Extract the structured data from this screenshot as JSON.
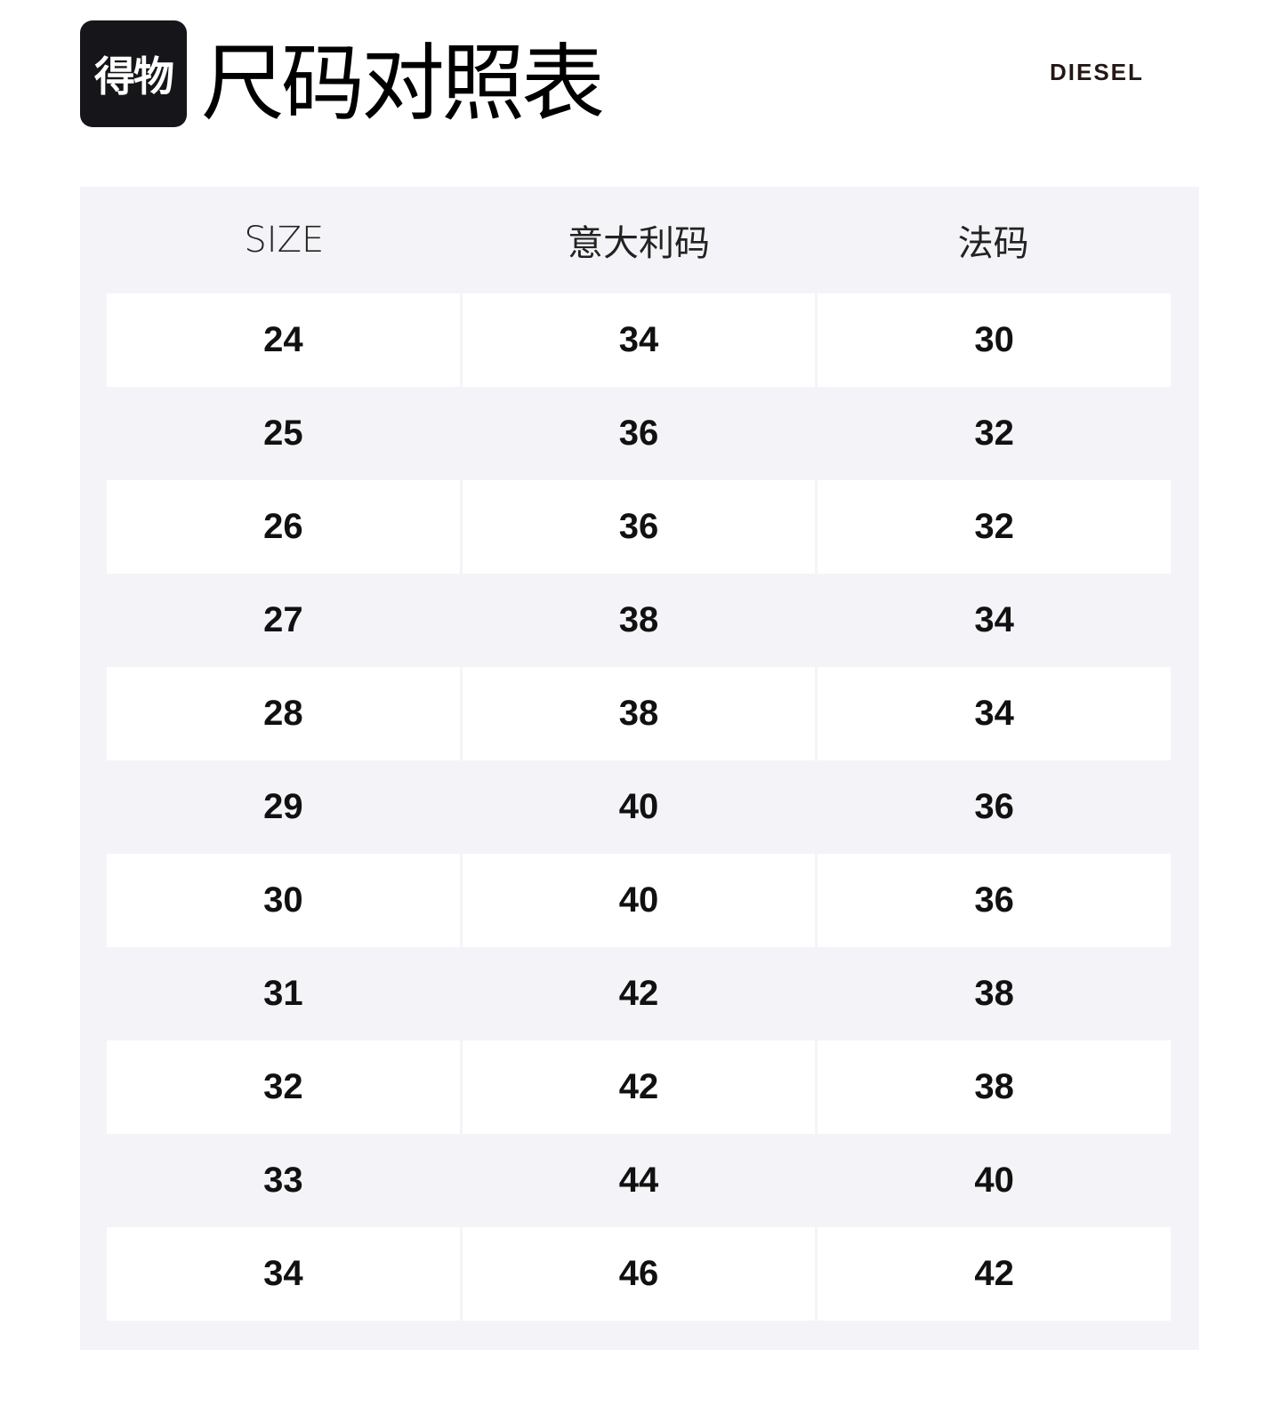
{
  "header": {
    "logo_text": "得物",
    "title": "尺码对照表",
    "brand": "DIESEL"
  },
  "table": {
    "columns": [
      "SIZE",
      "意大利码",
      "法码"
    ],
    "rows": [
      [
        "24",
        "34",
        "30"
      ],
      [
        "25",
        "36",
        "32"
      ],
      [
        "26",
        "36",
        "32"
      ],
      [
        "27",
        "38",
        "34"
      ],
      [
        "28",
        "38",
        "34"
      ],
      [
        "29",
        "40",
        "36"
      ],
      [
        "30",
        "40",
        "36"
      ],
      [
        "31",
        "42",
        "38"
      ],
      [
        "32",
        "42",
        "38"
      ],
      [
        "33",
        "44",
        "40"
      ],
      [
        "34",
        "46",
        "42"
      ]
    ]
  }
}
